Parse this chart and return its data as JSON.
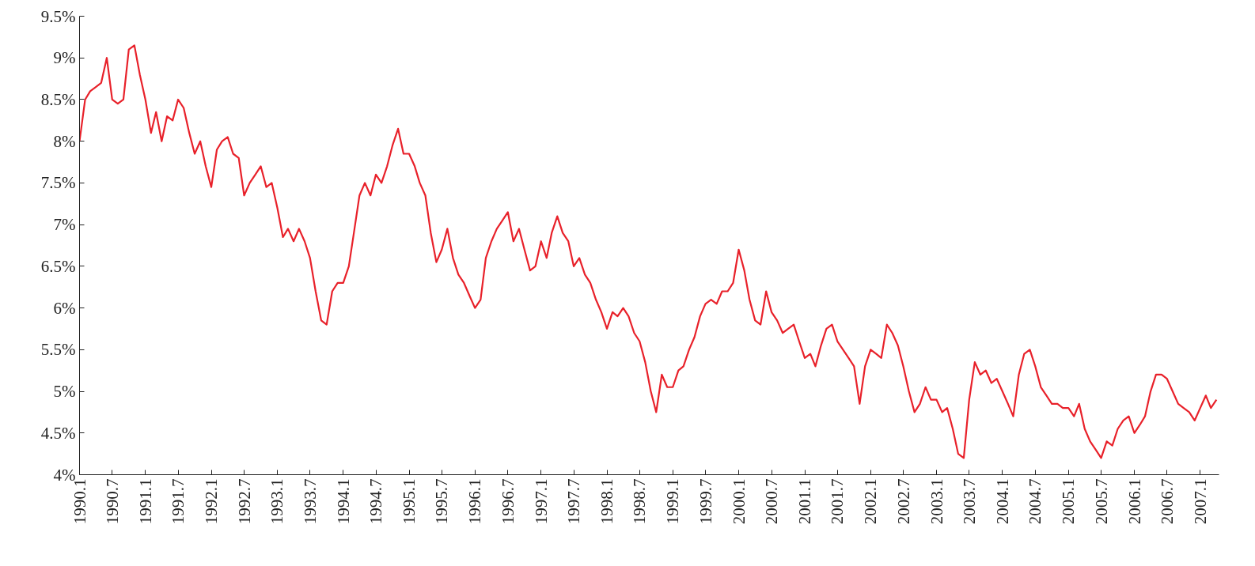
{
  "chart_data": {
    "type": "line",
    "x": [
      "1990-01",
      "1990-02",
      "1990-03",
      "1990-04",
      "1990-05",
      "1990-06",
      "1990-07",
      "1990-08",
      "1990-09",
      "1990-10",
      "1990-11",
      "1990-12",
      "1991-01",
      "1991-02",
      "1991-03",
      "1991-04",
      "1991-05",
      "1991-06",
      "1991-07",
      "1991-08",
      "1991-09",
      "1991-10",
      "1991-11",
      "1991-12",
      "1992-01",
      "1992-02",
      "1992-03",
      "1992-04",
      "1992-05",
      "1992-06",
      "1992-07",
      "1992-08",
      "1992-09",
      "1992-10",
      "1992-11",
      "1992-12",
      "1993-01",
      "1993-02",
      "1993-03",
      "1993-04",
      "1993-05",
      "1993-06",
      "1993-07",
      "1993-08",
      "1993-09",
      "1993-10",
      "1993-11",
      "1993-12",
      "1994-01",
      "1994-02",
      "1994-03",
      "1994-04",
      "1994-05",
      "1994-06",
      "1994-07",
      "1994-08",
      "1994-09",
      "1994-10",
      "1994-11",
      "1994-12",
      "1995-01",
      "1995-02",
      "1995-03",
      "1995-04",
      "1995-05",
      "1995-06",
      "1995-07",
      "1995-08",
      "1995-09",
      "1995-10",
      "1995-11",
      "1995-12",
      "1996-01",
      "1996-02",
      "1996-03",
      "1996-04",
      "1996-05",
      "1996-06",
      "1996-07",
      "1996-08",
      "1996-09",
      "1996-10",
      "1996-11",
      "1996-12",
      "1997-01",
      "1997-02",
      "1997-03",
      "1997-04",
      "1997-05",
      "1997-06",
      "1997-07",
      "1997-08",
      "1997-09",
      "1997-10",
      "1997-11",
      "1997-12",
      "1998-01",
      "1998-02",
      "1998-03",
      "1998-04",
      "1998-05",
      "1998-06",
      "1998-07",
      "1998-08",
      "1998-09",
      "1998-10",
      "1998-11",
      "1998-12",
      "1999-01",
      "1999-02",
      "1999-03",
      "1999-04",
      "1999-05",
      "1999-06",
      "1999-07",
      "1999-08",
      "1999-09",
      "1999-10",
      "1999-11",
      "1999-12",
      "2000-01",
      "2000-02",
      "2000-03",
      "2000-04",
      "2000-05",
      "2000-06",
      "2000-07",
      "2000-08",
      "2000-09",
      "2000-10",
      "2000-11",
      "2000-12",
      "2001-01",
      "2001-02",
      "2001-03",
      "2001-04",
      "2001-05",
      "2001-06",
      "2001-07",
      "2001-08",
      "2001-09",
      "2001-10",
      "2001-11",
      "2001-12",
      "2002-01",
      "2002-02",
      "2002-03",
      "2002-04",
      "2002-05",
      "2002-06",
      "2002-07",
      "2002-08",
      "2002-09",
      "2002-10",
      "2002-11",
      "2002-12",
      "2003-01",
      "2003-02",
      "2003-03",
      "2003-04",
      "2003-05",
      "2003-06",
      "2003-07",
      "2003-08",
      "2003-09",
      "2003-10",
      "2003-11",
      "2003-12",
      "2004-01",
      "2004-02",
      "2004-03",
      "2004-04",
      "2004-05",
      "2004-06",
      "2004-07",
      "2004-08",
      "2004-09",
      "2004-10",
      "2004-11",
      "2004-12",
      "2005-01",
      "2005-02",
      "2005-03",
      "2005-04",
      "2005-05",
      "2005-06",
      "2005-07",
      "2005-08",
      "2005-09",
      "2005-10",
      "2005-11",
      "2005-12",
      "2006-01",
      "2006-02",
      "2006-03",
      "2006-04",
      "2006-05",
      "2006-06",
      "2006-07",
      "2006-08",
      "2006-09",
      "2006-10",
      "2006-11",
      "2006-12",
      "2007-01",
      "2007-02",
      "2007-03",
      "2007-04"
    ],
    "series": [
      {
        "color": "#e8212a",
        "values": [
          8.0,
          8.5,
          8.6,
          8.65,
          8.7,
          9.0,
          8.5,
          8.45,
          8.5,
          9.1,
          9.15,
          8.8,
          8.5,
          8.1,
          8.35,
          8.0,
          8.3,
          8.25,
          8.5,
          8.4,
          8.1,
          7.85,
          8.0,
          7.7,
          7.45,
          7.9,
          8.0,
          8.05,
          7.85,
          7.8,
          7.35,
          7.5,
          7.6,
          7.7,
          7.45,
          7.5,
          7.2,
          6.85,
          6.95,
          6.8,
          6.95,
          6.8,
          6.6,
          6.2,
          5.85,
          5.8,
          6.2,
          6.3,
          6.3,
          6.5,
          6.9,
          7.35,
          7.5,
          7.35,
          7.6,
          7.5,
          7.7,
          7.95,
          8.15,
          7.85,
          7.85,
          7.7,
          7.5,
          7.35,
          6.9,
          6.55,
          6.7,
          6.95,
          6.6,
          6.4,
          6.3,
          6.15,
          6.0,
          6.1,
          6.6,
          6.8,
          6.95,
          7.05,
          7.15,
          6.8,
          6.95,
          6.7,
          6.45,
          6.5,
          6.8,
          6.6,
          6.9,
          7.1,
          6.9,
          6.8,
          6.5,
          6.6,
          6.4,
          6.3,
          6.1,
          5.95,
          5.75,
          5.95,
          5.9,
          6.0,
          5.9,
          5.7,
          5.6,
          5.35,
          5.0,
          4.75,
          5.2,
          5.05,
          5.05,
          5.25,
          5.3,
          5.5,
          5.65,
          5.9,
          6.05,
          6.1,
          6.05,
          6.2,
          6.2,
          6.3,
          6.7,
          6.45,
          6.1,
          5.85,
          5.8,
          6.2,
          5.95,
          5.85,
          5.7,
          5.75,
          5.8,
          5.6,
          5.4,
          5.45,
          5.3,
          5.55,
          5.75,
          5.8,
          5.6,
          5.5,
          5.4,
          5.3,
          4.85,
          5.3,
          5.5,
          5.45,
          5.4,
          5.8,
          5.7,
          5.55,
          5.3,
          5.0,
          4.75,
          4.85,
          5.05,
          4.9,
          4.9,
          4.75,
          4.8,
          4.55,
          4.25,
          4.2,
          4.9,
          5.35,
          5.2,
          5.25,
          5.1,
          5.15,
          5.0,
          4.85,
          4.7,
          5.2,
          5.45,
          5.5,
          5.3,
          5.05,
          4.95,
          4.85,
          4.85,
          4.8,
          4.8,
          4.7,
          4.85,
          4.55,
          4.4,
          4.3,
          4.2,
          4.4,
          4.35,
          4.55,
          4.65,
          4.7,
          4.5,
          4.6,
          4.7,
          5.0,
          5.2,
          5.2,
          5.15,
          5.0,
          4.85,
          4.8,
          4.75,
          4.65,
          4.8,
          4.95,
          4.8,
          4.9
        ]
      }
    ],
    "xlim": [
      "1990-01",
      "2007-04-15"
    ],
    "xticks": [
      {
        "value": "1990-01",
        "label": "1990.1"
      },
      {
        "value": "1990-07",
        "label": "1990.7"
      },
      {
        "value": "1991-01",
        "label": "1991.1"
      },
      {
        "value": "1991-07",
        "label": "1991.7"
      },
      {
        "value": "1992-01",
        "label": "1992.1"
      },
      {
        "value": "1992-07",
        "label": "1992.7"
      },
      {
        "value": "1993-01",
        "label": "1993.1"
      },
      {
        "value": "1993-07",
        "label": "1993.7"
      },
      {
        "value": "1994-01",
        "label": "1994.1"
      },
      {
        "value": "1994-07",
        "label": "1994.7"
      },
      {
        "value": "1995-01",
        "label": "1995.1"
      },
      {
        "value": "1995-07",
        "label": "1995.7"
      },
      {
        "value": "1996-01",
        "label": "1996.1"
      },
      {
        "value": "1996-07",
        "label": "1996.7"
      },
      {
        "value": "1997-01",
        "label": "1997.1"
      },
      {
        "value": "1997-07",
        "label": "1997.7"
      },
      {
        "value": "1998-01",
        "label": "1998.1"
      },
      {
        "value": "1998-07",
        "label": "1998.7"
      },
      {
        "value": "1999-01",
        "label": "1999.1"
      },
      {
        "value": "1999-07",
        "label": "1999.7"
      },
      {
        "value": "2000-01",
        "label": "2000.1"
      },
      {
        "value": "2000-07",
        "label": "2000.7"
      },
      {
        "value": "2001-01",
        "label": "2001.1"
      },
      {
        "value": "2001-07",
        "label": "2001.7"
      },
      {
        "value": "2002-01",
        "label": "2002.1"
      },
      {
        "value": "2002-07",
        "label": "2002.7"
      },
      {
        "value": "2003-01",
        "label": "2003.1"
      },
      {
        "value": "2003-07",
        "label": "2003.7"
      },
      {
        "value": "2004-01",
        "label": "2004.1"
      },
      {
        "value": "2004-07",
        "label": "2004.7"
      },
      {
        "value": "2005-01",
        "label": "2005.1"
      },
      {
        "value": "2005-07",
        "label": "2005.7"
      },
      {
        "value": "2006-01",
        "label": "2006.1"
      },
      {
        "value": "2006-07",
        "label": "2006.7"
      },
      {
        "value": "2007-01",
        "label": "2007.1"
      }
    ],
    "ylim": [
      4,
      9.5
    ],
    "yticks": [
      {
        "value": 4,
        "label": "4%"
      },
      {
        "value": 4.5,
        "label": "4.5%"
      },
      {
        "value": 5,
        "label": "5%"
      },
      {
        "value": 5.5,
        "label": "5.5%"
      },
      {
        "value": 6,
        "label": "6%"
      },
      {
        "value": 6.5,
        "label": "6.5%"
      },
      {
        "value": 7,
        "label": "7%"
      },
      {
        "value": 7.5,
        "label": "7.5%"
      },
      {
        "value": 8,
        "label": "8%"
      },
      {
        "value": 8.5,
        "label": "8.5%"
      },
      {
        "value": 9,
        "label": "9%"
      },
      {
        "value": 9.5,
        "label": "9.5%"
      }
    ],
    "grid": false
  }
}
